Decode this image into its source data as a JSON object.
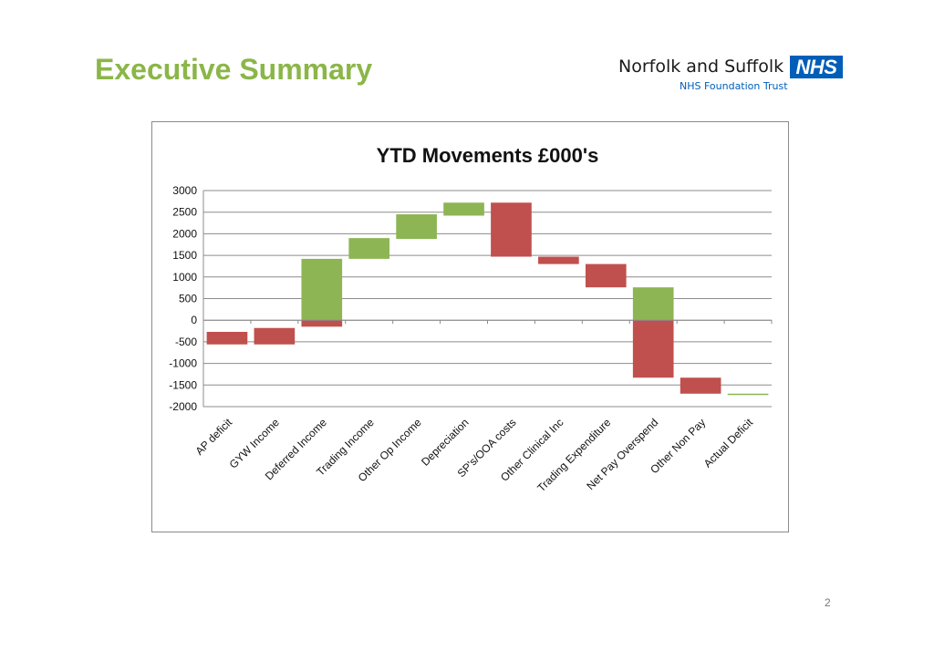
{
  "slide": {
    "title": "Executive Summary",
    "page_number": "2"
  },
  "logo": {
    "name": "Norfolk and Suffolk",
    "badge": "NHS",
    "subtitle": "NHS Foundation Trust",
    "badge_color": "#005eb8"
  },
  "colors": {
    "increase": "#8db554",
    "decrease": "#c0504d",
    "total": "#8db554",
    "title_green": "#8bb648"
  },
  "chart_data": {
    "type": "bar",
    "subtype": "waterfall",
    "title": "YTD Movements £000's",
    "xlabel": "",
    "ylabel": "",
    "ylim": [
      -2000,
      3000
    ],
    "yticks": [
      3000,
      2500,
      2000,
      1500,
      1000,
      500,
      0,
      -500,
      -1000,
      -1500,
      -2000
    ],
    "grid": true,
    "categories": [
      "AP deficit",
      "GYW Income",
      "Deferred Income",
      "Trading Income",
      "Other Op Income",
      "Depreciation",
      "SP's/OOA costs",
      "Other Clinical Inc",
      "Trading Expenditure",
      "Net Pay Overspend",
      "Other Non Pay",
      "Actual Deficit"
    ],
    "segments": [
      {
        "category": "AP deficit",
        "from": -270,
        "to": -560,
        "kind": "decrease"
      },
      {
        "category": "GYW Income",
        "from": -560,
        "to": -180,
        "kind": "decrease"
      },
      {
        "category": "Deferred Income",
        "from": -150,
        "to": 1420,
        "kind": "increase"
      },
      {
        "category": "Trading Income",
        "from": 1420,
        "to": 1900,
        "kind": "increase"
      },
      {
        "category": "Other Op Income",
        "from": 1880,
        "to": 2450,
        "kind": "increase"
      },
      {
        "category": "Depreciation",
        "from": 2420,
        "to": 2720,
        "kind": "increase"
      },
      {
        "category": "SP's/OOA costs",
        "from": 2720,
        "to": 1470,
        "kind": "decrease"
      },
      {
        "category": "Other Clinical Inc",
        "from": 1470,
        "to": 1300,
        "kind": "decrease"
      },
      {
        "category": "Trading Expenditure",
        "from": 1300,
        "to": 760,
        "kind": "decrease"
      },
      {
        "category": "Net Pay Overspend",
        "from": 760,
        "to": -1330,
        "kind": "decrease"
      },
      {
        "category": "Other Non Pay",
        "from": -1330,
        "to": -1700,
        "kind": "decrease"
      },
      {
        "category": "Actual Deficit",
        "from": -1700,
        "to": -1720,
        "kind": "total"
      }
    ]
  }
}
